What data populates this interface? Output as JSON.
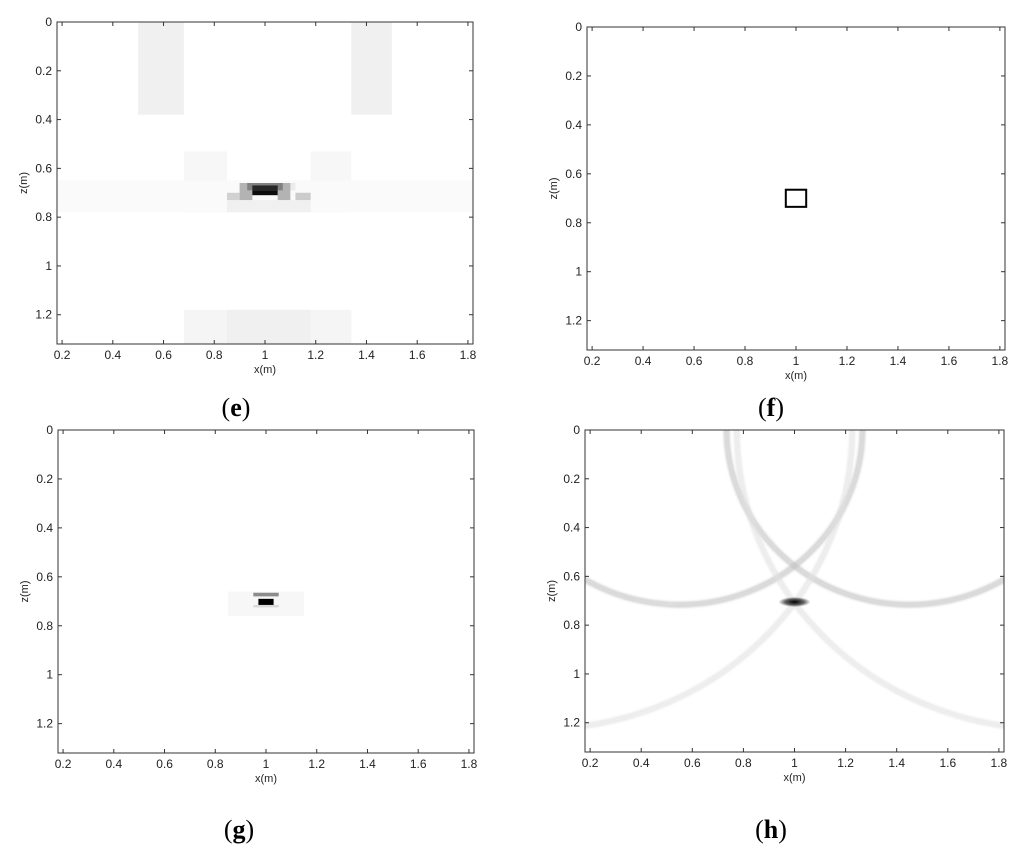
{
  "chart_data": [
    {
      "type": "heatmap",
      "panel_label": "e",
      "xlabel": "x(m)",
      "ylabel": "z(m)",
      "xlim": [
        0.18,
        1.82
      ],
      "ylim": [
        1.32,
        0
      ],
      "x_ticks": [
        "0.2",
        "0.4",
        "0.6",
        "0.8",
        "1",
        "1.2",
        "1.4",
        "1.6",
        "1.8"
      ],
      "y_ticks": [
        "0",
        "0.2",
        "0.4",
        "0.6",
        "0.8",
        "1",
        "1.2"
      ],
      "colormap": "gray-reversed",
      "cells": [
        {
          "x0": 0.5,
          "x1": 0.68,
          "z0": 0.0,
          "z1": 0.38,
          "v": 0.06
        },
        {
          "x0": 1.34,
          "x1": 1.5,
          "z0": 0.0,
          "z1": 0.38,
          "v": 0.06
        },
        {
          "x0": 0.68,
          "x1": 0.85,
          "z0": 0.53,
          "z1": 0.78,
          "v": 0.03
        },
        {
          "x0": 1.18,
          "x1": 1.34,
          "z0": 0.53,
          "z1": 0.78,
          "v": 0.03
        },
        {
          "x0": 0.18,
          "x1": 1.82,
          "z0": 0.65,
          "z1": 0.78,
          "v": 0.02
        },
        {
          "x0": 0.68,
          "x1": 1.34,
          "z0": 1.18,
          "z1": 1.32,
          "v": 0.04
        },
        {
          "x0": 0.85,
          "x1": 1.18,
          "z0": 1.18,
          "z1": 1.32,
          "v": 0.06
        },
        {
          "x0": 0.85,
          "x1": 1.18,
          "z0": 0.73,
          "z1": 0.78,
          "v": 0.06
        },
        {
          "x0": 0.9,
          "x1": 1.12,
          "z0": 0.66,
          "z1": 0.69,
          "v": 0.08
        },
        {
          "x0": 0.85,
          "x1": 0.9,
          "z0": 0.7,
          "z1": 0.73,
          "v": 0.18
        },
        {
          "x0": 1.12,
          "x1": 1.18,
          "z0": 0.7,
          "z1": 0.73,
          "v": 0.2
        },
        {
          "x0": 0.9,
          "x1": 0.95,
          "z0": 0.66,
          "z1": 0.73,
          "v": 0.3
        },
        {
          "x0": 1.05,
          "x1": 1.1,
          "z0": 0.66,
          "z1": 0.73,
          "v": 0.3
        },
        {
          "x0": 0.93,
          "x1": 1.07,
          "z0": 0.66,
          "z1": 0.69,
          "v": 0.5
        },
        {
          "x0": 0.95,
          "x1": 1.05,
          "z0": 0.69,
          "z1": 0.71,
          "v": 0.95
        },
        {
          "x0": 0.95,
          "x1": 1.05,
          "z0": 0.67,
          "z1": 0.69,
          "v": 0.85
        }
      ]
    },
    {
      "type": "scatter",
      "panel_label": "f",
      "xlabel": "x(m)",
      "ylabel": "z(m)",
      "xlim": [
        0.18,
        1.82
      ],
      "ylim": [
        1.32,
        0
      ],
      "x_ticks": [
        "0.2",
        "0.4",
        "0.6",
        "0.8",
        "1",
        "1.2",
        "1.4",
        "1.6",
        "1.8"
      ],
      "y_ticks": [
        "0",
        "0.2",
        "0.4",
        "0.6",
        "0.8",
        "1",
        "1.2"
      ],
      "target_box": {
        "x0": 0.96,
        "x1": 1.04,
        "z0": 0.665,
        "z1": 0.735
      }
    },
    {
      "type": "heatmap",
      "panel_label": "g",
      "xlabel": "x(m)",
      "ylabel": "z(m)",
      "xlim": [
        0.18,
        1.82
      ],
      "ylim": [
        1.32,
        0
      ],
      "x_ticks": [
        "0.2",
        "0.4",
        "0.6",
        "0.8",
        "1",
        "1.2",
        "1.4",
        "1.6",
        "1.8"
      ],
      "y_ticks": [
        "0",
        "0.2",
        "0.4",
        "0.6",
        "0.8",
        "1",
        "1.2"
      ],
      "colormap": "gray-reversed",
      "cells": [
        {
          "x0": 0.85,
          "x1": 1.15,
          "z0": 0.66,
          "z1": 0.76,
          "v": 0.03
        },
        {
          "x0": 0.95,
          "x1": 1.05,
          "z0": 0.665,
          "z1": 0.68,
          "v": 0.45
        },
        {
          "x0": 0.97,
          "x1": 1.03,
          "z0": 0.69,
          "z1": 0.715,
          "v": 1.0
        },
        {
          "x0": 0.95,
          "x1": 1.05,
          "z0": 0.715,
          "z1": 0.725,
          "v": 0.15
        }
      ]
    },
    {
      "type": "heatmap",
      "panel_label": "h",
      "xlabel": "x(m)",
      "ylabel": "z(m)",
      "xlim": [
        0.18,
        1.82
      ],
      "ylim": [
        1.32,
        0
      ],
      "x_ticks": [
        "0.2",
        "0.4",
        "0.6",
        "0.8",
        "1",
        "1.2",
        "1.4",
        "1.6",
        "1.8"
      ],
      "y_ticks": [
        "0",
        "0.2",
        "0.4",
        "0.6",
        "0.8",
        "1",
        "1.2"
      ],
      "colormap": "gray-reversed",
      "arcs": [
        {
          "cx": 1.45,
          "cz": 0.0,
          "r": 0.71,
          "v": 0.25
        },
        {
          "cx": 0.55,
          "cz": 0.0,
          "r": 0.71,
          "v": 0.25
        },
        {
          "cx": 0.0,
          "cz": 0.0,
          "r": 1.22,
          "v": 0.12
        },
        {
          "cx": 2.0,
          "cz": 0.0,
          "r": 1.22,
          "v": 0.12
        }
      ],
      "peak": {
        "x": 1.0,
        "z": 0.705,
        "v": 1.0
      }
    }
  ]
}
